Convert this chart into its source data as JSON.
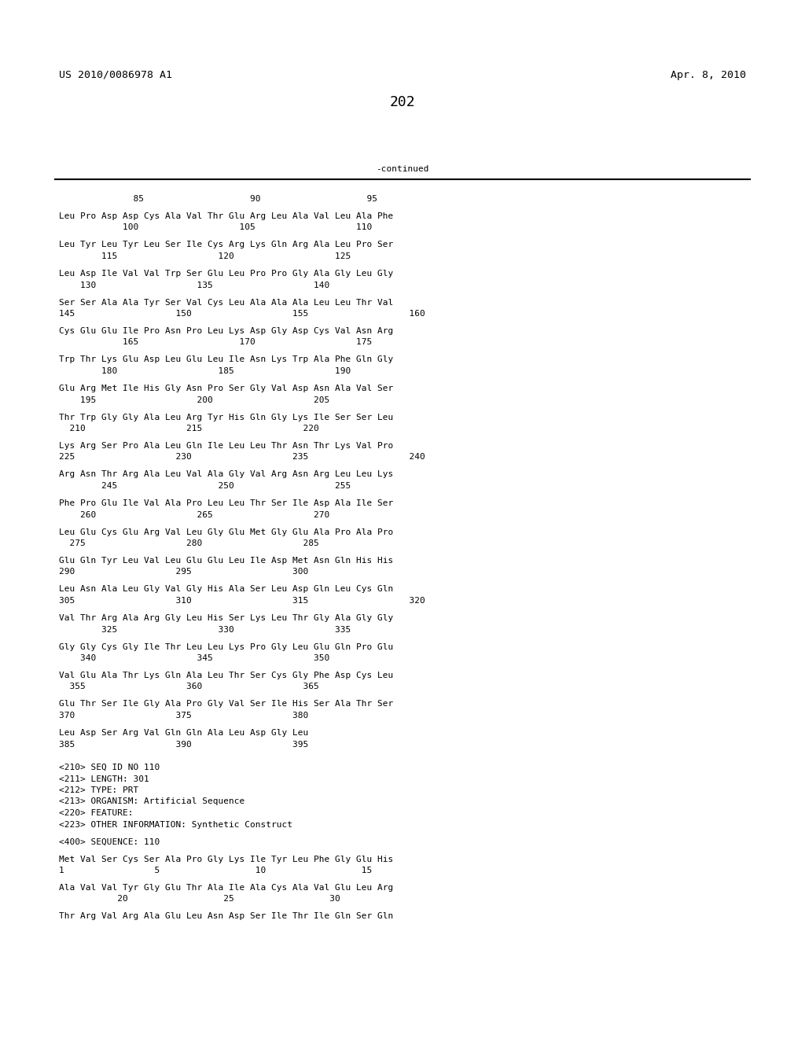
{
  "header_left": "US 2010/0086978 A1",
  "header_right": "Apr. 8, 2010",
  "page_number": "202",
  "continued_label": "-continued",
  "background_color": "#ffffff",
  "text_color": "#000000",
  "font_size": 8.0,
  "mono_font": "DejaVu Sans Mono",
  "header_font_size": 9.5,
  "page_num_font_size": 13,
  "sequence_lines": [
    {
      "type": "numbering",
      "text": "              85                    90                    95"
    },
    {
      "type": "blank"
    },
    {
      "type": "sequence",
      "text": "Leu Pro Asp Asp Cys Ala Val Thr Glu Arg Leu Ala Val Leu Ala Phe"
    },
    {
      "type": "numbering",
      "text": "            100                   105                   110"
    },
    {
      "type": "blank"
    },
    {
      "type": "sequence",
      "text": "Leu Tyr Leu Tyr Leu Ser Ile Cys Arg Lys Gln Arg Ala Leu Pro Ser"
    },
    {
      "type": "numbering",
      "text": "        115                   120                   125"
    },
    {
      "type": "blank"
    },
    {
      "type": "sequence",
      "text": "Leu Asp Ile Val Val Trp Ser Glu Leu Pro Pro Gly Ala Gly Leu Gly"
    },
    {
      "type": "numbering",
      "text": "    130                   135                   140"
    },
    {
      "type": "blank"
    },
    {
      "type": "sequence",
      "text": "Ser Ser Ala Ala Tyr Ser Val Cys Leu Ala Ala Ala Leu Leu Thr Val"
    },
    {
      "type": "numbering",
      "text": "145                   150                   155                   160"
    },
    {
      "type": "blank"
    },
    {
      "type": "sequence",
      "text": "Cys Glu Glu Ile Pro Asn Pro Leu Lys Asp Gly Asp Cys Val Asn Arg"
    },
    {
      "type": "numbering",
      "text": "            165                   170                   175"
    },
    {
      "type": "blank"
    },
    {
      "type": "sequence",
      "text": "Trp Thr Lys Glu Asp Leu Glu Leu Ile Asn Lys Trp Ala Phe Gln Gly"
    },
    {
      "type": "numbering",
      "text": "        180                   185                   190"
    },
    {
      "type": "blank"
    },
    {
      "type": "sequence",
      "text": "Glu Arg Met Ile His Gly Asn Pro Ser Gly Val Asp Asn Ala Val Ser"
    },
    {
      "type": "numbering",
      "text": "    195                   200                   205"
    },
    {
      "type": "blank"
    },
    {
      "type": "sequence",
      "text": "Thr Trp Gly Gly Ala Leu Arg Tyr His Gln Gly Lys Ile Ser Ser Leu"
    },
    {
      "type": "numbering",
      "text": "  210                   215                   220"
    },
    {
      "type": "blank"
    },
    {
      "type": "sequence",
      "text": "Lys Arg Ser Pro Ala Leu Gln Ile Leu Leu Thr Asn Thr Lys Val Pro"
    },
    {
      "type": "numbering",
      "text": "225                   230                   235                   240"
    },
    {
      "type": "blank"
    },
    {
      "type": "sequence",
      "text": "Arg Asn Thr Arg Ala Leu Val Ala Gly Val Arg Asn Arg Leu Leu Lys"
    },
    {
      "type": "numbering",
      "text": "        245                   250                   255"
    },
    {
      "type": "blank"
    },
    {
      "type": "sequence",
      "text": "Phe Pro Glu Ile Val Ala Pro Leu Leu Thr Ser Ile Asp Ala Ile Ser"
    },
    {
      "type": "numbering",
      "text": "    260                   265                   270"
    },
    {
      "type": "blank"
    },
    {
      "type": "sequence",
      "text": "Leu Glu Cys Glu Arg Val Leu Gly Glu Met Gly Glu Ala Pro Ala Pro"
    },
    {
      "type": "numbering",
      "text": "  275                   280                   285"
    },
    {
      "type": "blank"
    },
    {
      "type": "sequence",
      "text": "Glu Gln Tyr Leu Val Leu Glu Glu Leu Ile Asp Met Asn Gln His His"
    },
    {
      "type": "numbering",
      "text": "290                   295                   300"
    },
    {
      "type": "blank"
    },
    {
      "type": "sequence",
      "text": "Leu Asn Ala Leu Gly Val Gly His Ala Ser Leu Asp Gln Leu Cys Gln"
    },
    {
      "type": "numbering",
      "text": "305                   310                   315                   320"
    },
    {
      "type": "blank"
    },
    {
      "type": "sequence",
      "text": "Val Thr Arg Ala Arg Gly Leu His Ser Lys Leu Thr Gly Ala Gly Gly"
    },
    {
      "type": "numbering",
      "text": "        325                   330                   335"
    },
    {
      "type": "blank"
    },
    {
      "type": "sequence",
      "text": "Gly Gly Cys Gly Ile Thr Leu Leu Lys Pro Gly Leu Glu Gln Pro Glu"
    },
    {
      "type": "numbering",
      "text": "    340                   345                   350"
    },
    {
      "type": "blank"
    },
    {
      "type": "sequence",
      "text": "Val Glu Ala Thr Lys Gln Ala Leu Thr Ser Cys Gly Phe Asp Cys Leu"
    },
    {
      "type": "numbering",
      "text": "  355                   360                   365"
    },
    {
      "type": "blank"
    },
    {
      "type": "sequence",
      "text": "Glu Thr Ser Ile Gly Ala Pro Gly Val Ser Ile His Ser Ala Thr Ser"
    },
    {
      "type": "numbering",
      "text": "370                   375                   380"
    },
    {
      "type": "blank"
    },
    {
      "type": "sequence",
      "text": "Leu Asp Ser Arg Val Gln Gln Ala Leu Asp Gly Leu"
    },
    {
      "type": "numbering",
      "text": "385                   390                   395"
    },
    {
      "type": "blank"
    },
    {
      "type": "blank"
    },
    {
      "type": "metadata",
      "text": "<210> SEQ ID NO 110"
    },
    {
      "type": "metadata",
      "text": "<211> LENGTH: 301"
    },
    {
      "type": "metadata",
      "text": "<212> TYPE: PRT"
    },
    {
      "type": "metadata",
      "text": "<213> ORGANISM: Artificial Sequence"
    },
    {
      "type": "metadata",
      "text": "<220> FEATURE:"
    },
    {
      "type": "metadata",
      "text": "<223> OTHER INFORMATION: Synthetic Construct"
    },
    {
      "type": "blank"
    },
    {
      "type": "metadata",
      "text": "<400> SEQUENCE: 110"
    },
    {
      "type": "blank"
    },
    {
      "type": "sequence",
      "text": "Met Val Ser Cys Ser Ala Pro Gly Lys Ile Tyr Leu Phe Gly Glu His"
    },
    {
      "type": "numbering",
      "text": "1                 5                  10                  15"
    },
    {
      "type": "blank"
    },
    {
      "type": "sequence",
      "text": "Ala Val Val Tyr Gly Glu Thr Ala Ile Ala Cys Ala Val Glu Leu Arg"
    },
    {
      "type": "numbering",
      "text": "           20                  25                  30"
    },
    {
      "type": "blank"
    },
    {
      "type": "sequence",
      "text": "Thr Arg Val Arg Ala Glu Leu Asn Asp Ser Ile Thr Ile Gln Ser Gln"
    }
  ]
}
